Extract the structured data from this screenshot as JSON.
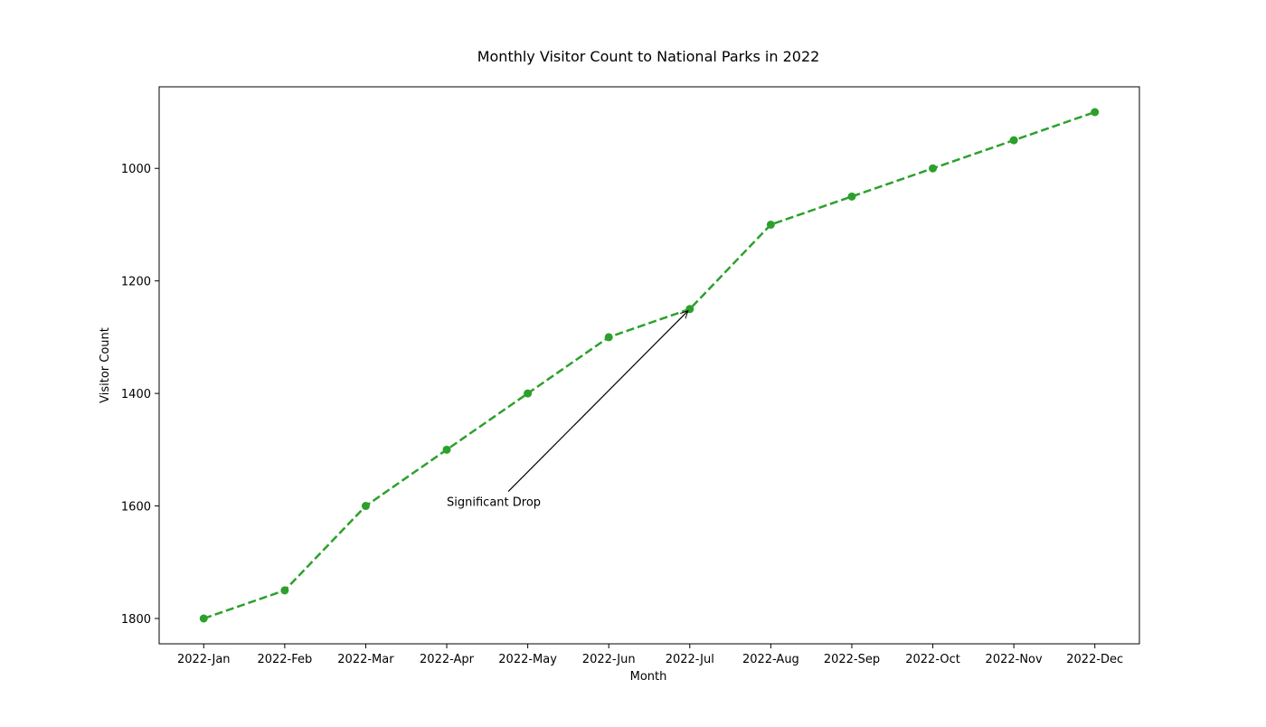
{
  "chart_data": {
    "type": "line",
    "title": "Monthly Visitor Count to National Parks in 2022",
    "xlabel": "Month",
    "ylabel": "Visitor Count",
    "categories": [
      "2022-Jan",
      "2022-Feb",
      "2022-Mar",
      "2022-Apr",
      "2022-May",
      "2022-Jun",
      "2022-Jul",
      "2022-Aug",
      "2022-Sep",
      "2022-Oct",
      "2022-Nov",
      "2022-Dec"
    ],
    "series": [
      {
        "values": [
          1800,
          1750,
          1600,
          1500,
          1400,
          1300,
          1250,
          1100,
          1050,
          1000,
          950,
          900
        ],
        "color": "#2ca02c",
        "line_style": "dashed",
        "marker": "circle"
      }
    ],
    "ylim": [
      1845,
      855
    ],
    "y_inverted": true,
    "yticks": [
      1000,
      1200,
      1400,
      1600,
      1800
    ],
    "grid": false,
    "annotations": [
      {
        "text": "Significant Drop",
        "target_category": "2022-Jul",
        "target_value": 1250,
        "text_category": "2022-Apr",
        "text_value": 1600
      }
    ]
  }
}
